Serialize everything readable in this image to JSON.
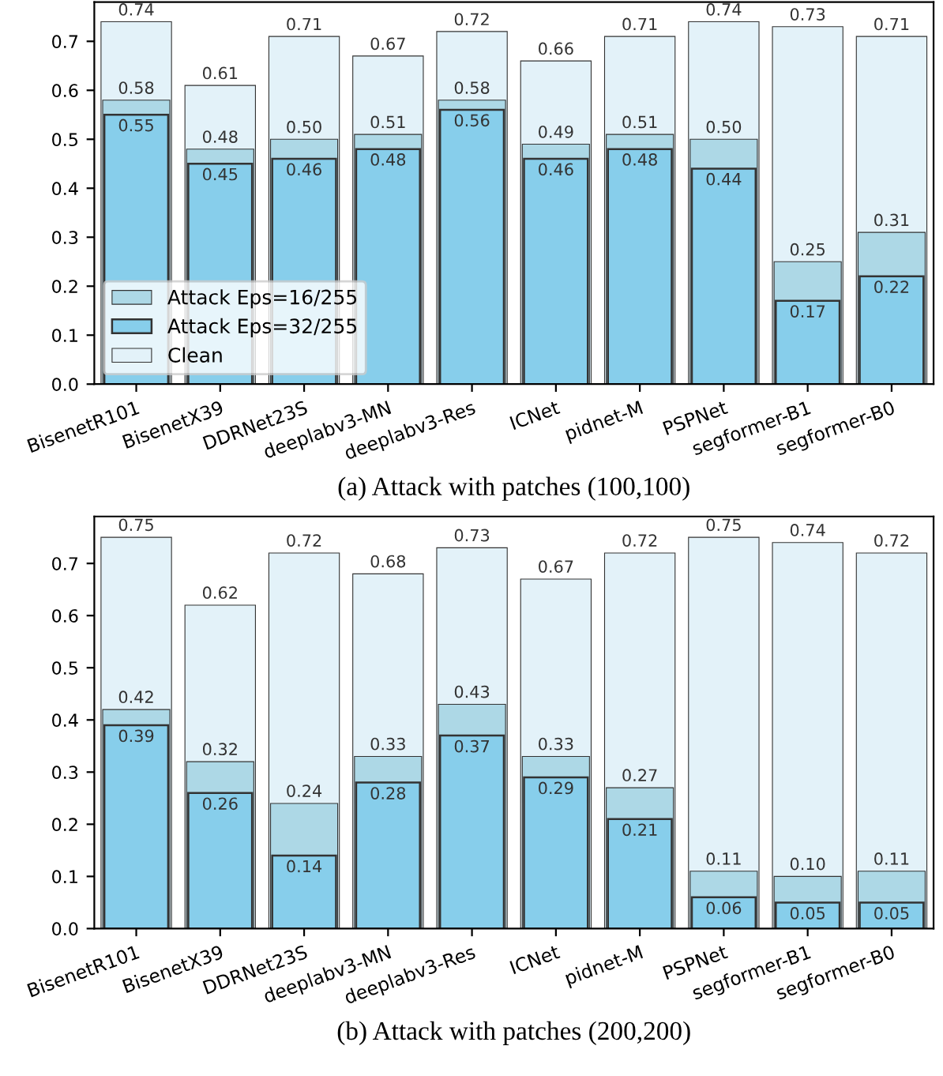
{
  "chart_data": [
    {
      "type": "bar",
      "xlabel": "(a) Attack with patches (100,100)",
      "categories": [
        "BisenetR101",
        "BisenetX39",
        "DDRNet23S",
        "deeplabv3-MN",
        "deeplabv3-Res",
        "ICNet",
        "pidnet-M",
        "PSPNet",
        "segformer-B1",
        "segformer-B0"
      ],
      "series": [
        {
          "name": "Attack Eps=16/255",
          "color": "#add8e6",
          "values": [
            0.58,
            0.48,
            0.5,
            0.51,
            0.58,
            0.49,
            0.51,
            0.5,
            0.25,
            0.31
          ],
          "value_labels": [
            "0.58",
            "0.48",
            "0.50",
            "0.51",
            "0.58",
            "0.49",
            "0.51",
            "0.50",
            "0.25",
            "0.31"
          ]
        },
        {
          "name": "Attack Eps=32/255",
          "color": "#87ceeb",
          "values": [
            0.55,
            0.45,
            0.46,
            0.48,
            0.56,
            0.46,
            0.48,
            0.44,
            0.17,
            0.22
          ]
        },
        {
          "name": "Clean",
          "color": "#e3f2f9",
          "values": [
            0.74,
            0.61,
            0.71,
            0.67,
            0.72,
            0.66,
            0.71,
            0.74,
            0.73,
            0.71
          ]
        }
      ],
      "ylim": [
        0,
        0.78
      ],
      "yticks": [
        {
          "value": 0,
          "label": "0.0"
        },
        0.1,
        0.2,
        0.3,
        0.4,
        0.5,
        0.6,
        0.7
      ],
      "data_labels": true,
      "legend": "lower left",
      "grid": false
    },
    {
      "type": "bar",
      "xlabel": "(b) Attack with patches (200,200)",
      "categories": [
        "BisenetR101",
        "BisenetX39",
        "DDRNet23S",
        "deeplabv3-MN",
        "deeplabv3-Res",
        "ICNet",
        "pidnet-M",
        "PSPNet",
        "segformer-B1",
        "segformer-B0"
      ],
      "series": [
        {
          "color": "#add8e6",
          "values": [
            0.42,
            0.32,
            0.24,
            0.33,
            0.43,
            0.33,
            0.27,
            0.11,
            0.1,
            0.11
          ],
          "value_labels": [
            "0.42",
            "0.32",
            "0.24",
            "0.33",
            "0.43",
            "0.33",
            "0.27",
            "0.11",
            "0.10",
            "0.11"
          ]
        },
        {
          "color": "#87ceeb",
          "values": [
            0.39,
            0.26,
            0.14,
            0.28,
            0.37,
            0.29,
            0.21,
            0.06,
            0.05,
            0.05
          ]
        },
        {
          "color": "#e3f2f9",
          "values": [
            0.75,
            0.62,
            0.72,
            0.68,
            0.73,
            0.67,
            0.72,
            0.75,
            0.74,
            0.72
          ]
        }
      ],
      "ylim": [
        0,
        0.79
      ],
      "yticks": [
        {
          "value": 0,
          "label": "0.0"
        },
        0.1,
        0.2,
        0.3,
        0.4,
        0.5,
        0.6,
        0.7
      ],
      "data_labels": true,
      "legend": false,
      "grid": false
    }
  ]
}
